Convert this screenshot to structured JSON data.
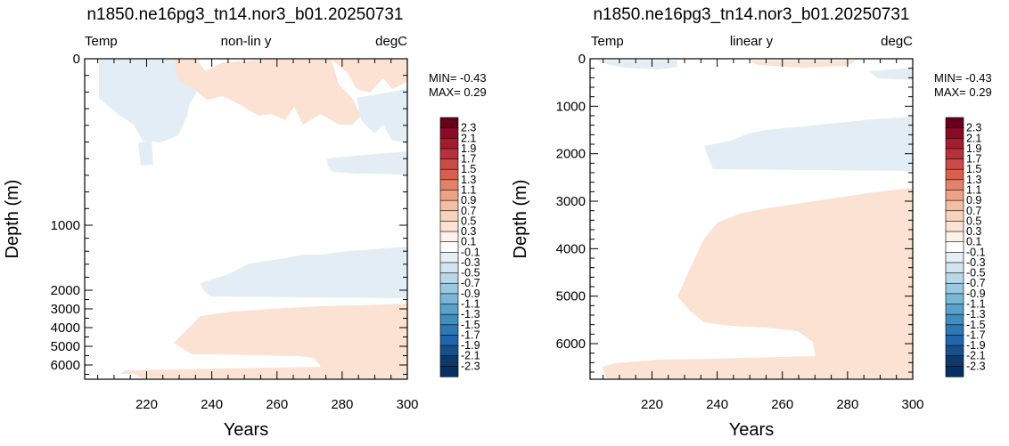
{
  "chart_data": [
    {
      "type": "heatmap",
      "title": "n1850.ne16pg3_tn14.nor3_b01.20250731",
      "left_label": "Temp",
      "center_label": "non-lin y",
      "right_label": "degC",
      "xlabel": "Years",
      "ylabel": "Depth (m)",
      "x_ticks": [
        220,
        240,
        260,
        280,
        300
      ],
      "y_ticks": [
        0,
        1000,
        2000,
        3000,
        4000,
        5000,
        6000
      ],
      "xlim": [
        201,
        300
      ],
      "ylim": [
        0,
        6750
      ],
      "y_scale": "non-linear",
      "min_text": "MIN= -0.43",
      "max_text": "MAX=  0.29",
      "regions": [
        {
          "sign": "negative",
          "description": "weak cooling near surface",
          "years": [
            204,
            220
          ],
          "depth": [
            0,
            400
          ]
        },
        {
          "sign": "positive",
          "description": "weak warming near surface",
          "years": [
            225,
            300
          ],
          "depth": [
            0,
            250
          ]
        },
        {
          "sign": "negative",
          "description": "cooling at mid depth",
          "years": [
            245,
            300
          ],
          "depth": [
            1300,
            2300
          ]
        },
        {
          "sign": "positive",
          "description": "warming at depth",
          "years": [
            227,
            300
          ],
          "depth": [
            2700,
            6300
          ]
        },
        {
          "sign": "positive",
          "description": "warming near bottom",
          "years": [
            213,
            270
          ],
          "depth": [
            6300,
            6750
          ]
        }
      ]
    },
    {
      "type": "heatmap",
      "title": "n1850.ne16pg3_tn14.nor3_b01.20250731",
      "left_label": "Temp",
      "center_label": "linear y",
      "right_label": "degC",
      "xlabel": "Years",
      "ylabel": "Depth (m)",
      "x_ticks": [
        220,
        240,
        260,
        280,
        300
      ],
      "y_ticks": [
        0,
        1000,
        2000,
        3000,
        4000,
        5000,
        6000
      ],
      "xlim": [
        201,
        300
      ],
      "ylim": [
        0,
        6750
      ],
      "y_scale": "linear",
      "min_text": "MIN= -0.43",
      "max_text": "MAX=  0.29",
      "regions": [
        {
          "sign": "negative",
          "description": "cooling at mid depth",
          "years": [
            241,
            300
          ],
          "depth": [
            1250,
            2350
          ]
        },
        {
          "sign": "positive",
          "description": "warming at depth",
          "years": [
            227,
            300
          ],
          "depth": [
            2700,
            6300
          ]
        },
        {
          "sign": "positive",
          "description": "warming near bottom",
          "years": [
            213,
            270
          ],
          "depth": [
            6300,
            6750
          ]
        }
      ]
    }
  ],
  "colorbar": {
    "labels": [
      "2.3",
      "2.1",
      "1.9",
      "1.7",
      "1.5",
      "1.3",
      "1.1",
      "0.9",
      "0.7",
      "0.5",
      "0.3",
      "0.1",
      "-0.1",
      "-0.3",
      "-0.5",
      "-0.7",
      "-0.9",
      "-1.1",
      "-1.3",
      "-1.5",
      "-1.7",
      "-1.9",
      "-2.1",
      "-2.3"
    ],
    "colors": [
      "#67001f",
      "#8a0b25",
      "#a51d2d",
      "#b8313a",
      "#c94c48",
      "#d6604d",
      "#e2826a",
      "#eea386",
      "#f4bea2",
      "#f8d3bc",
      "#fbe2d3",
      "#fff2ea",
      "#ffffff",
      "#e6eff5",
      "#d1e5f0",
      "#b8d8e9",
      "#99c9e0",
      "#7ab6d6",
      "#5aa2cc",
      "#3f8ec0",
      "#2f78b4",
      "#2166ac",
      "#18508a",
      "#0e3a6a",
      "#053061"
    ],
    "warm_fill": "#fbe2d3",
    "cool_fill": "#e3edf5"
  }
}
